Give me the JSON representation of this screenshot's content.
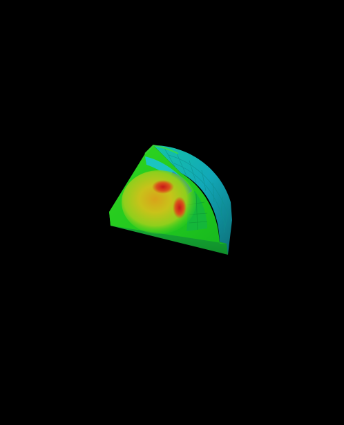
{
  "scene": {
    "background_color": "#000000",
    "object": "quarter-cylinder-mesh",
    "colormap": [
      "#1a3fd6",
      "#1f8fe6",
      "#19c6c9",
      "#14c84a",
      "#2fd41f",
      "#9fd61c",
      "#d6c41a",
      "#d9521a",
      "#c81818"
    ]
  }
}
